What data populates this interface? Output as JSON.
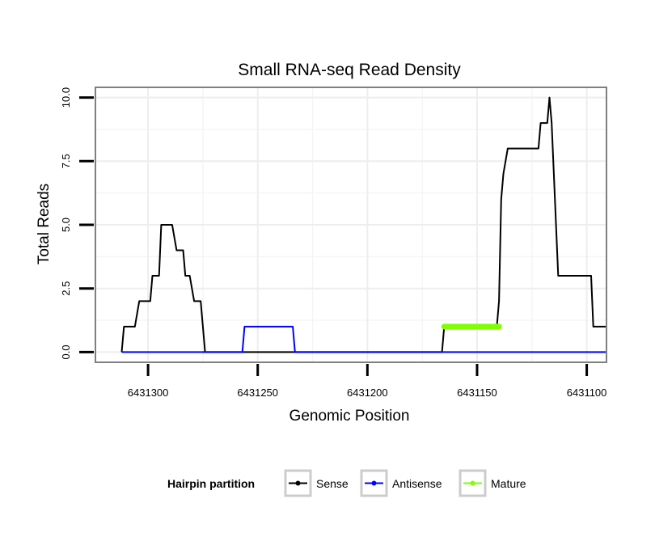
{
  "chart_data": {
    "type": "line",
    "title": "Small RNA-seq Read Density",
    "xlabel": "Genomic Position",
    "ylabel": "Total Reads",
    "xlim": [
      6431324,
      6431091
    ],
    "ylim": [
      -0.4,
      10.4
    ],
    "x_reversed": true,
    "grid": true,
    "x_ticks": [
      6431300,
      6431250,
      6431200,
      6431150,
      6431100
    ],
    "x_tick_labels": [
      "6431300",
      "6431250",
      "6431200",
      "6431150",
      "6431100"
    ],
    "y_ticks": [
      0,
      2.5,
      5,
      7.5,
      10
    ],
    "y_tick_labels": [
      "0.0",
      "2.5",
      "5.0",
      "7.5",
      "10.0"
    ],
    "legend": {
      "title": "Hairpin partition",
      "position": "bottom",
      "entries": [
        {
          "name": "Sense",
          "color": "#000000"
        },
        {
          "name": "Antisense",
          "color": "#0000ff"
        },
        {
          "name": "Mature",
          "color": "#7fff00"
        }
      ]
    },
    "series": [
      {
        "name": "Sense",
        "color": "#000000",
        "x": [
          6431312,
          6431311,
          6431309,
          6431308,
          6431306,
          6431304,
          6431302,
          6431301,
          6431299,
          6431298,
          6431295,
          6431294,
          6431292,
          6431291,
          6431290,
          6431289,
          6431287,
          6431286,
          6431284,
          6431283,
          6431282,
          6431281,
          6431279,
          6431278,
          6431277,
          6431276,
          6431274,
          6431275,
          6431230,
          6431200,
          6431166,
          6431165,
          6431150,
          6431141,
          6431140,
          6431139,
          6431138,
          6431136,
          6431134,
          6431129,
          6431122,
          6431121,
          6431118,
          6431117,
          6431116,
          6431115,
          6431114,
          6431113,
          6431112,
          6431111,
          6431110,
          6431109,
          6431108,
          6431103,
          6431098,
          6431097,
          6431096,
          6431091
        ],
        "y": [
          0,
          1,
          1,
          1,
          1,
          2,
          2,
          2,
          2,
          3,
          3,
          5,
          5,
          5,
          5,
          5,
          4,
          4,
          4,
          3,
          3,
          3,
          2,
          2,
          2,
          2,
          0,
          0,
          0,
          0,
          0,
          1,
          1,
          1,
          2,
          6,
          7,
          8,
          8,
          8,
          8,
          9,
          9,
          10,
          9,
          7,
          5,
          3,
          3,
          3,
          3,
          3,
          3,
          3,
          3,
          1,
          1,
          1
        ]
      },
      {
        "name": "Antisense",
        "color": "#0000ff",
        "x": [
          6431312,
          6431257,
          6431256,
          6431234,
          6431233,
          6431091
        ],
        "y": [
          0,
          0,
          1,
          1,
          0,
          0
        ]
      },
      {
        "name": "Mature",
        "color": "#7fff00",
        "x": [
          6431165,
          6431140
        ],
        "y": [
          1,
          1
        ]
      }
    ]
  }
}
